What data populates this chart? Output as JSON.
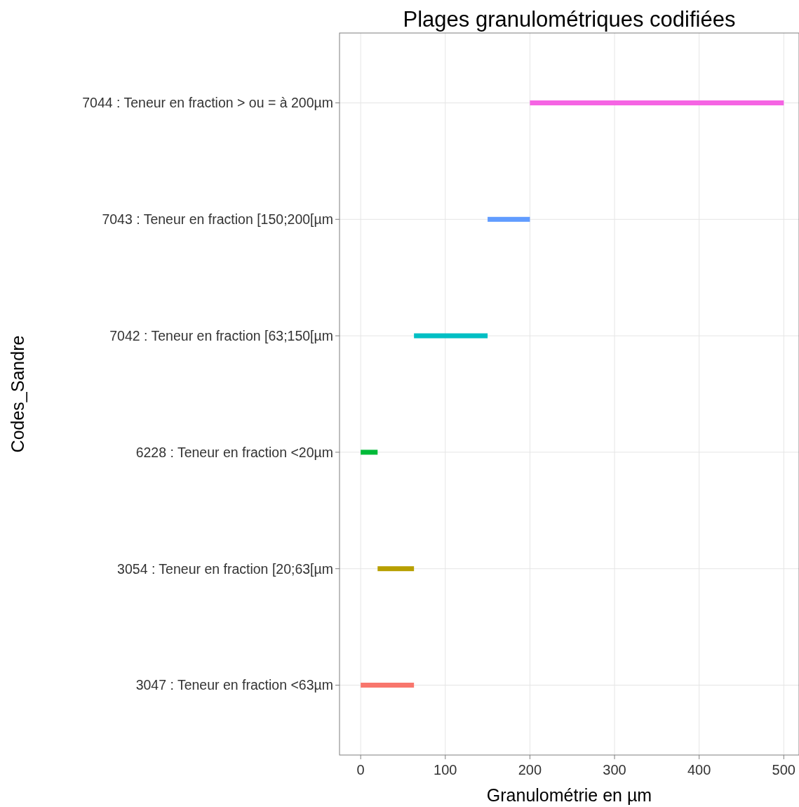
{
  "chart_data": {
    "type": "bar",
    "orientation": "horizontal",
    "title": "Plages granulométriques codifiées",
    "xlabel": "Granulométrie en µm",
    "ylabel": "Codes_Sandre",
    "categories": [
      "7044 : Teneur en fraction > ou = à 200µm",
      "7043 : Teneur en fraction [150;200[µm",
      "7042 : Teneur en fraction [63;150[µm",
      "6228 : Teneur en fraction <20µm",
      "3054 : Teneur en fraction [20;63[µm",
      "3047 : Teneur en fraction <63µm"
    ],
    "base": [
      200,
      150,
      63,
      0,
      20,
      0
    ],
    "values": [
      300,
      50,
      87,
      20,
      43,
      63
    ],
    "colors": [
      "#f564e3",
      "#619cff",
      "#00bfc4",
      "#00ba38",
      "#b79f00",
      "#f8766d"
    ],
    "xlim": [
      -25,
      518
    ],
    "xticks": [
      0,
      100,
      200,
      300,
      400,
      500
    ],
    "grid": true
  }
}
